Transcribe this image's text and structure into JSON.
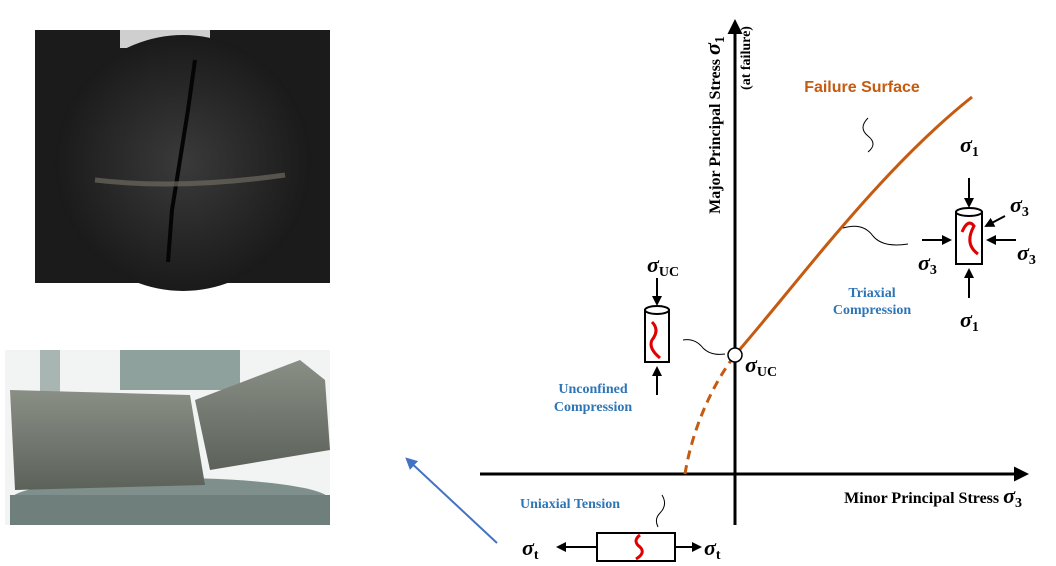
{
  "axes": {
    "y_label": {
      "text": "Major Principal Stress",
      "symbol": "σ",
      "sub": "1"
    },
    "y_note": "(at failure)",
    "x_label": {
      "text": "Minor Principal Stress",
      "symbol": "σ",
      "sub": "3"
    }
  },
  "failure_surface": "Failure Surface",
  "triaxial": {
    "label": [
      "Triaxial",
      "Compression"
    ],
    "sigma_top": {
      "symbol": "σ",
      "sub": "1"
    },
    "sigma_bottom": {
      "symbol": "σ",
      "sub": "1"
    },
    "sigma_right_top": {
      "symbol": "σ",
      "sub": "3"
    },
    "sigma_left": {
      "symbol": "σ",
      "sub": "3"
    },
    "sigma_right": {
      "symbol": "σ",
      "sub": "3"
    }
  },
  "unconfined": {
    "label": [
      "Unconfined",
      "Compression"
    ],
    "sigma_top": {
      "symbol": "σ",
      "sub": "UC"
    },
    "sigma_point": {
      "symbol": "σ",
      "sub": "UC"
    }
  },
  "tension": {
    "label": "Uniaxial Tension",
    "sigma_left": {
      "symbol": "σ",
      "sub": "t"
    },
    "sigma_right": {
      "symbol": "σ",
      "sub": "t"
    }
  }
}
